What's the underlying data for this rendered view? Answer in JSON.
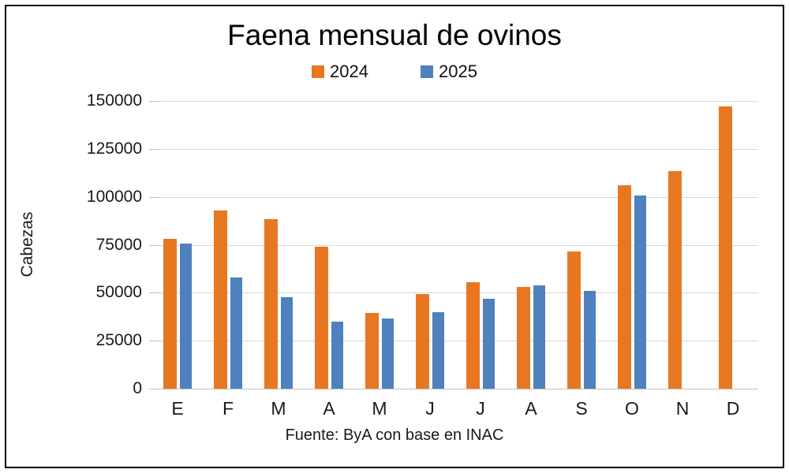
{
  "window": {
    "background": "#ffffff",
    "border_color": "#000000"
  },
  "chart_data": {
    "type": "bar",
    "title": "Faena mensual de ovinos",
    "categories": [
      "E",
      "F",
      "M",
      "A",
      "M",
      "J",
      "J",
      "A",
      "S",
      "O",
      "N",
      "D"
    ],
    "series": [
      {
        "name": "2024",
        "color": "#E87722",
        "values": [
          78000,
          93000,
          88500,
          74000,
          39500,
          49500,
          55500,
          53000,
          71500,
          106000,
          113500,
          147000
        ]
      },
      {
        "name": "2025",
        "color": "#4E81BD",
        "values": [
          75500,
          58000,
          47500,
          35000,
          36500,
          40000,
          47000,
          54000,
          51000,
          100500,
          null,
          null
        ]
      }
    ],
    "xlabel": "",
    "ylabel": "Cabezas",
    "ylim": [
      0,
      150000
    ],
    "ytick_step": 25000,
    "yticks": [
      0,
      25000,
      50000,
      75000,
      100000,
      125000,
      150000
    ],
    "grid": true,
    "legend_position": "top",
    "source": "Fuente: ByA con base en INAC",
    "gridline_color": "#D9D9D9",
    "axis_line_color": "#BFBFBF"
  }
}
